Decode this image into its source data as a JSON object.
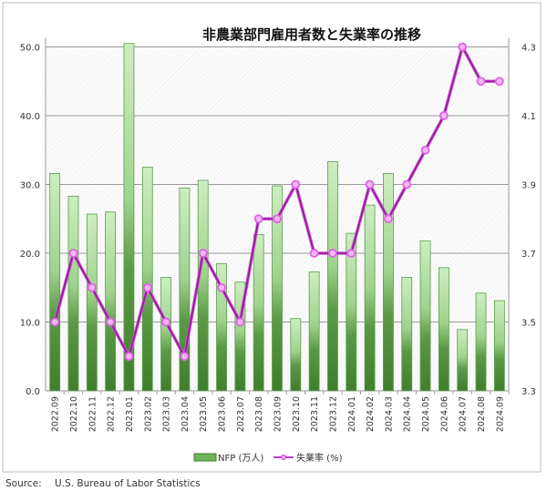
{
  "chart_data": {
    "type": "bar+line",
    "title": "非農業部門雇用者数と失業率の推移",
    "categories": [
      "2022.09",
      "2022.10",
      "2022.11",
      "2022.12",
      "2023.01",
      "2023.02",
      "2023.03",
      "2023.04",
      "2023.05",
      "2023.06",
      "2023.07",
      "2023.08",
      "2023.09",
      "2023.10",
      "2023.11",
      "2023.12",
      "2024.01",
      "2024.02",
      "2024.03",
      "2024.04",
      "2024.05",
      "2024.06",
      "2024.07",
      "2024.08",
      "2024.09"
    ],
    "series": [
      {
        "name": "NFP (万人)",
        "type": "bar",
        "axis": "left",
        "color": "#4e8f3a",
        "values": [
          31.6,
          28.3,
          25.7,
          26.0,
          50.5,
          32.5,
          16.5,
          29.5,
          30.6,
          18.5,
          15.8,
          22.7,
          29.8,
          10.5,
          17.3,
          33.3,
          22.9,
          27.0,
          31.6,
          16.5,
          21.8,
          17.9,
          8.9,
          14.2,
          13.1
        ]
      },
      {
        "name": "失業率 (%)",
        "type": "line",
        "axis": "right",
        "color": "#8b1f8e",
        "marker_color": "#e060e8",
        "values": [
          3.5,
          3.7,
          3.6,
          3.5,
          3.4,
          3.6,
          3.5,
          3.4,
          3.7,
          3.6,
          3.5,
          3.8,
          3.8,
          3.9,
          3.7,
          3.7,
          3.7,
          3.9,
          3.8,
          3.9,
          4.0,
          4.1,
          4.3,
          4.2,
          4.2
        ]
      }
    ],
    "ylim_left": [
      0,
      50
    ],
    "yticks_left": [
      "0.0",
      "10.0",
      "20.0",
      "30.0",
      "40.0",
      "50.0"
    ],
    "ylim_right": [
      3.3,
      4.3
    ],
    "yticks_right": [
      "3.3",
      "3.5",
      "3.7",
      "3.9",
      "4.1",
      "4.3"
    ],
    "grid": true,
    "legend_position": "bottom"
  },
  "source_label": "Source:",
  "source_text": "U.S. Bureau of Labor Statistics"
}
